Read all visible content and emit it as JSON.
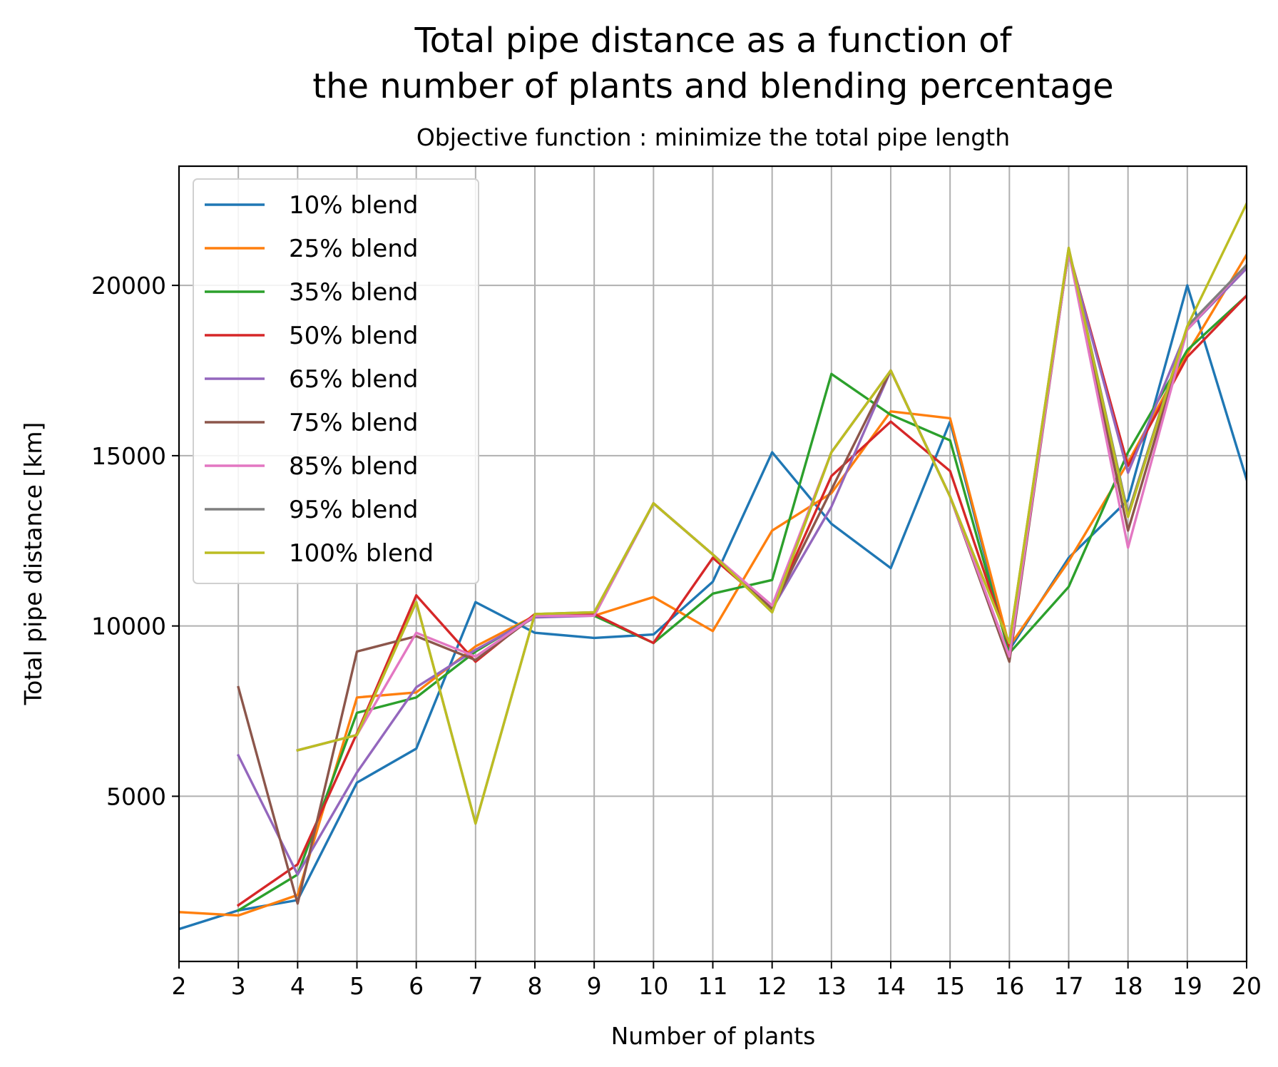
{
  "chart_data": {
    "type": "line",
    "title": [
      "Total pipe distance as a function of",
      "the number of plants and blending percentage"
    ],
    "subtitle": "Objective function : minimize the total pipe length",
    "xlabel": "Number of plants",
    "ylabel": "Total pipe distance [km]",
    "xlim": [
      2,
      20
    ],
    "ylim": [
      150,
      23500
    ],
    "xticks": [
      "2",
      "3",
      "4",
      "5",
      "6",
      "7",
      "8",
      "9",
      "10",
      "11",
      "12",
      "13",
      "14",
      "15",
      "16",
      "17",
      "18",
      "19",
      "20"
    ],
    "yticks": [
      "5000",
      "10000",
      "15000",
      "20000"
    ],
    "grid": true,
    "legend_position": "upper-left",
    "x": [
      2,
      3,
      4,
      5,
      6,
      7,
      8,
      9,
      10,
      11,
      12,
      13,
      14,
      15,
      16,
      17,
      18,
      19,
      20
    ],
    "series": [
      {
        "name": "10% blend",
        "color": "#1f77b4",
        "values": [
          1100,
          1650,
          1950,
          5400,
          6400,
          10700,
          9800,
          9650,
          9750,
          11300,
          15100,
          13000,
          11700,
          16000,
          9300,
          12000,
          13700,
          20000,
          14300
        ]
      },
      {
        "name": "25% blend",
        "color": "#ff7f0e",
        "values": [
          1600,
          1500,
          2100,
          7900,
          8050,
          9400,
          10300,
          10300,
          10850,
          9850,
          12800,
          13900,
          16300,
          16100,
          9400,
          11900,
          14800,
          18000,
          20900
        ]
      },
      {
        "name": "35% blend",
        "color": "#2ca02c",
        "values": [
          null,
          1650,
          2700,
          7450,
          7900,
          9250,
          10300,
          10300,
          9500,
          10950,
          11350,
          17400,
          16200,
          15450,
          9200,
          11150,
          15100,
          18100,
          19700
        ]
      },
      {
        "name": "50% blend",
        "color": "#d62728",
        "values": [
          null,
          1800,
          3000,
          6850,
          10900,
          8950,
          10350,
          10350,
          9500,
          12000,
          10500,
          14400,
          16000,
          14550,
          9400,
          21000,
          14700,
          17900,
          19700
        ]
      },
      {
        "name": "65% blend",
        "color": "#9467bd",
        "values": [
          null,
          6200,
          2700,
          5700,
          8200,
          9300,
          10250,
          10300,
          13600,
          12100,
          10500,
          13500,
          17500,
          13800,
          9100,
          21000,
          14500,
          18700,
          20500
        ]
      },
      {
        "name": "75% blend",
        "color": "#8c564b",
        "values": [
          null,
          8200,
          1850,
          9250,
          9700,
          9000,
          10300,
          10300,
          13600,
          12100,
          10500,
          14000,
          17500,
          13800,
          8950,
          21000,
          12800,
          18700,
          20600
        ]
      },
      {
        "name": "85% blend",
        "color": "#e377c2",
        "values": [
          null,
          null,
          6350,
          6800,
          9800,
          9100,
          10300,
          10300,
          13600,
          12100,
          10600,
          15100,
          17500,
          13800,
          9100,
          21000,
          12300,
          18700,
          20600
        ]
      },
      {
        "name": "95% blend",
        "color": "#7f7f7f",
        "values": [
          null,
          null,
          6350,
          6800,
          10700,
          4200,
          10350,
          10400,
          13600,
          12100,
          10400,
          15100,
          17500,
          13800,
          9500,
          21100,
          13300,
          18800,
          20600
        ]
      },
      {
        "name": "100% blend",
        "color": "#bcbd22",
        "values": [
          null,
          null,
          6350,
          6800,
          10700,
          4200,
          10350,
          10400,
          13600,
          12100,
          10400,
          15100,
          17500,
          13800,
          9500,
          21100,
          13200,
          18800,
          22400
        ]
      }
    ]
  }
}
